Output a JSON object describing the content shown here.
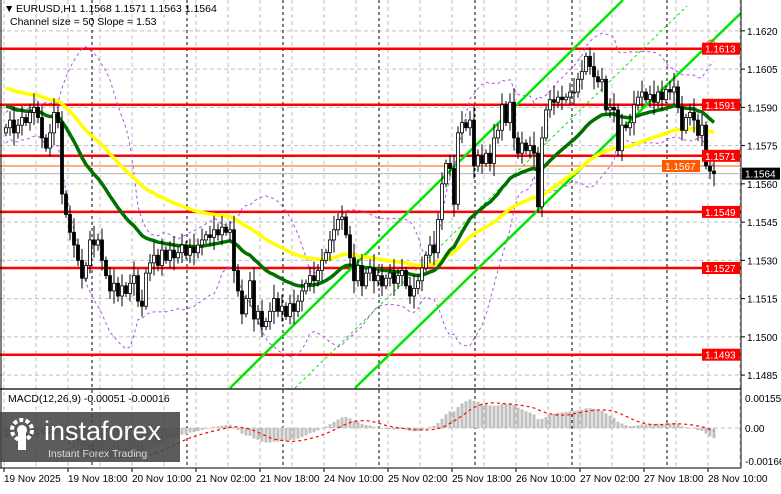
{
  "header": {
    "symbol_line": "EURUSD,H1  1.1568 1.1571 1.1563 1.1564",
    "channel_info": "Channel size = 50 Slope = 1.53"
  },
  "macd": {
    "label": "MACD(12,26,9) -0.00051 -0.00016",
    "axis_labels": [
      "0.00155",
      "0.00",
      "-0.00166"
    ]
  },
  "logo": {
    "brand": "instaforex",
    "tagline": "Instant Forex Trading"
  },
  "chart_data": {
    "type": "candlestick",
    "symbol": "EURUSD",
    "timeframe": "H1",
    "ohlc_last": {
      "open": 1.1568,
      "high": 1.1571,
      "low": 1.1563,
      "close": 1.1564
    },
    "x_labels": [
      "19 Nov 2025",
      "19 Nov 18:00",
      "20 Nov 10:00",
      "21 Nov 02:00",
      "21 Nov 18:00",
      "24 Nov 10:00",
      "25 Nov 02:00",
      "25 Nov 18:00",
      "26 Nov 10:00",
      "27 Nov 02:00",
      "27 Nov 18:00",
      "28 Nov 10:00"
    ],
    "y_ticks": [
      "1.1620",
      "1.1605",
      "1.1590",
      "1.1575",
      "1.1560",
      "1.1545",
      "1.1530",
      "1.1515",
      "1.1500",
      "1.1485"
    ],
    "ylim": [
      1.148,
      1.1632
    ],
    "levels": [
      {
        "value": 1.1613,
        "label": "1.1613",
        "color": "#ff0000"
      },
      {
        "value": 1.1591,
        "label": "1.1591",
        "color": "#ff0000"
      },
      {
        "value": 1.1571,
        "label": "1.1571",
        "color": "#ff0000"
      },
      {
        "value": 1.1549,
        "label": "1.1549",
        "color": "#ff0000"
      },
      {
        "value": 1.1527,
        "label": "1.1527",
        "color": "#ff0000"
      },
      {
        "value": 1.1493,
        "label": "1.1493",
        "color": "#ff0000"
      }
    ],
    "ask_line": {
      "value": 1.1567,
      "label": "1.1567",
      "color": "#ff5a00"
    },
    "bid_line": {
      "value": 1.1564,
      "label": "1.1564",
      "color": "#000000"
    },
    "first_open": 1.158,
    "closes": [
      1.1582,
      1.1585,
      1.158,
      1.1583,
      1.1586,
      1.1584,
      1.1588,
      1.159,
      1.1586,
      1.1578,
      1.1574,
      1.158,
      1.1588,
      1.1584,
      1.1556,
      1.1548,
      1.1541,
      1.1536,
      1.153,
      1.1523,
      1.1528,
      1.1538,
      1.1536,
      1.1538,
      1.153,
      1.1524,
      1.1518,
      1.1521,
      1.1516,
      1.152,
      1.1517,
      1.1521,
      1.1524,
      1.1514,
      1.1512,
      1.1525,
      1.1529,
      1.1532,
      1.1528,
      1.1534,
      1.153,
      1.1534,
      1.1531,
      1.1533,
      1.1536,
      1.1532,
      1.1535,
      1.1533,
      1.1536,
      1.1538,
      1.154,
      1.1539,
      1.1542,
      1.154,
      1.1543,
      1.1541,
      1.1542,
      1.1526,
      1.1518,
      1.1509,
      1.1515,
      1.1522,
      1.1507,
      1.151,
      1.1504,
      1.1506,
      1.151,
      1.1515,
      1.151,
      1.1512,
      1.1508,
      1.1513,
      1.151,
      1.1514,
      1.1518,
      1.1521,
      1.1524,
      1.1522,
      1.1526,
      1.153,
      1.1533,
      1.1538,
      1.1542,
      1.1546,
      1.1547,
      1.154,
      1.1531,
      1.1522,
      1.1528,
      1.152,
      1.1525,
      1.1527,
      1.1522,
      1.1524,
      1.152,
      1.1523,
      1.1525,
      1.1521,
      1.1524,
      1.1526,
      1.152,
      1.1516,
      1.1519,
      1.1522,
      1.1527,
      1.1532,
      1.1536,
      1.1533,
      1.1546,
      1.156,
      1.1568,
      1.1566,
      1.1552,
      1.158,
      1.1584,
      1.1582,
      1.1585,
      1.1567,
      1.1571,
      1.1568,
      1.1572,
      1.1568,
      1.1578,
      1.1581,
      1.1591,
      1.1584,
      1.1592,
      1.1578,
      1.1572,
      1.1576,
      1.1573,
      1.1575,
      1.1572,
      1.1551,
      1.1578,
      1.1589,
      1.1593,
      1.1592,
      1.1594,
      1.1593,
      1.1594,
      1.1596,
      1.1596,
      1.1601,
      1.1604,
      1.161,
      1.1606,
      1.1602,
      1.16,
      1.1601,
      1.1589,
      1.159,
      1.1589,
      1.1573,
      1.1583,
      1.1582,
      1.1584,
      1.1591,
      1.1594,
      1.1596,
      1.1593,
      1.1595,
      1.1592,
      1.1596,
      1.1593,
      1.1597,
      1.1596,
      1.1598,
      1.159,
      1.1581,
      1.1586,
      1.1588,
      1.1585,
      1.1579,
      1.1583,
      1.1567,
      1.1565,
      1.1564
    ],
    "colors": {
      "bull_body": "#ffffff",
      "bear_body": "#000000",
      "ma_fast": "#007000",
      "ma_slow": "#ffff00",
      "envelope": "#b050e0",
      "channel": "#00e600",
      "macd_hist": "#c0c0c0",
      "macd_signal": "#ff0000"
    },
    "grid": true
  }
}
